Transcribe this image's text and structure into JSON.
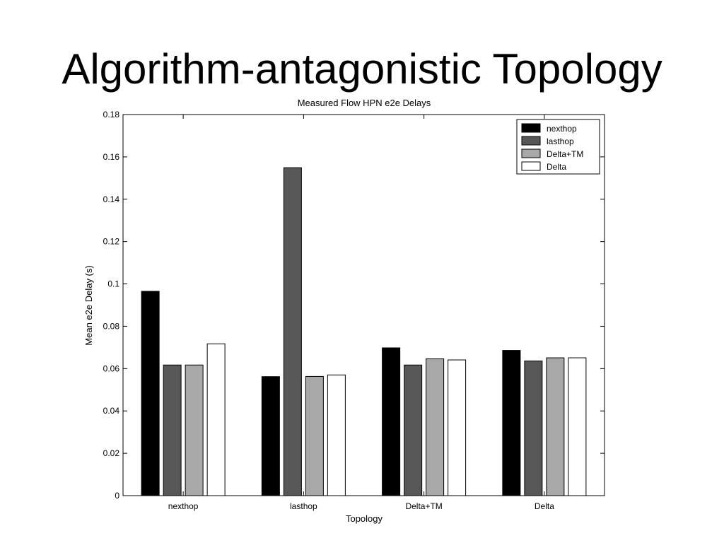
{
  "slide": {
    "title": "Algorithm-antagonistic Topology"
  },
  "chart_data": {
    "type": "bar",
    "title": "Measured Flow HPN e2e Delays",
    "xlabel": "Topology",
    "ylabel": "Mean e2e Delay (s)",
    "categories": [
      "nexthop",
      "lasthop",
      "Delta+TM",
      "Delta"
    ],
    "series": [
      {
        "name": "nexthop",
        "color": "#000000",
        "values": [
          0.0965,
          0.0562,
          0.0698,
          0.0686
        ]
      },
      {
        "name": "lasthop",
        "color": "#575757",
        "values": [
          0.0617,
          0.1549,
          0.0617,
          0.0636
        ]
      },
      {
        "name": "Delta+TM",
        "color": "#a8a8a8",
        "values": [
          0.0617,
          0.0563,
          0.0646,
          0.0651
        ]
      },
      {
        "name": "Delta",
        "color": "#ffffff",
        "values": [
          0.0717,
          0.057,
          0.0641,
          0.0651
        ]
      }
    ],
    "ylim": [
      0,
      0.18
    ],
    "yticks": [
      "0",
      "0.02",
      "0.04",
      "0.06",
      "0.08",
      "0.1",
      "0.12",
      "0.14",
      "0.16",
      "0.18"
    ],
    "grid": false,
    "legend_position": "top-right"
  }
}
